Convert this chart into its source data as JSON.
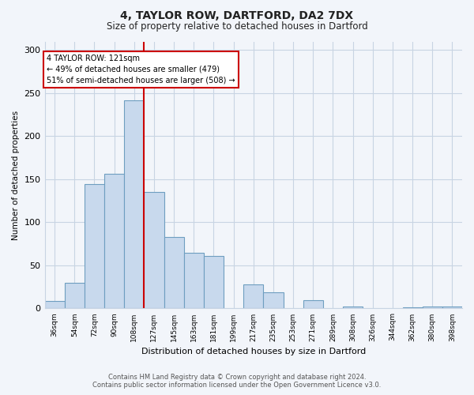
{
  "title": "4, TAYLOR ROW, DARTFORD, DA2 7DX",
  "subtitle": "Size of property relative to detached houses in Dartford",
  "xlabel": "Distribution of detached houses by size in Dartford",
  "ylabel": "Number of detached properties",
  "bin_labels": [
    "36sqm",
    "54sqm",
    "72sqm",
    "90sqm",
    "108sqm",
    "127sqm",
    "145sqm",
    "163sqm",
    "181sqm",
    "199sqm",
    "217sqm",
    "235sqm",
    "253sqm",
    "271sqm",
    "289sqm",
    "308sqm",
    "326sqm",
    "344sqm",
    "362sqm",
    "380sqm",
    "398sqm"
  ],
  "bar_values": [
    9,
    30,
    144,
    156,
    242,
    135,
    83,
    65,
    61,
    0,
    28,
    19,
    0,
    10,
    0,
    2,
    0,
    0,
    1,
    2,
    2
  ],
  "bar_color": "#c8d9ed",
  "bar_edge_color": "#6e9ec0",
  "vline_x": 5,
  "vline_color": "#cc0000",
  "annotation_text": "4 TAYLOR ROW: 121sqm\n← 49% of detached houses are smaller (479)\n51% of semi-detached houses are larger (508) →",
  "annotation_box_color": "#ffffff",
  "annotation_box_edge_color": "#cc0000",
  "ylim": [
    0,
    310
  ],
  "yticks": [
    0,
    50,
    100,
    150,
    200,
    250,
    300
  ],
  "footer_line1": "Contains HM Land Registry data © Crown copyright and database right 2024.",
  "footer_line2": "Contains public sector information licensed under the Open Government Licence v3.0.",
  "bg_color": "#f2f5fa",
  "plot_bg_color": "#f2f5fa",
  "grid_color": "#c8d4e3",
  "title_fontsize": 10,
  "subtitle_fontsize": 8.5
}
